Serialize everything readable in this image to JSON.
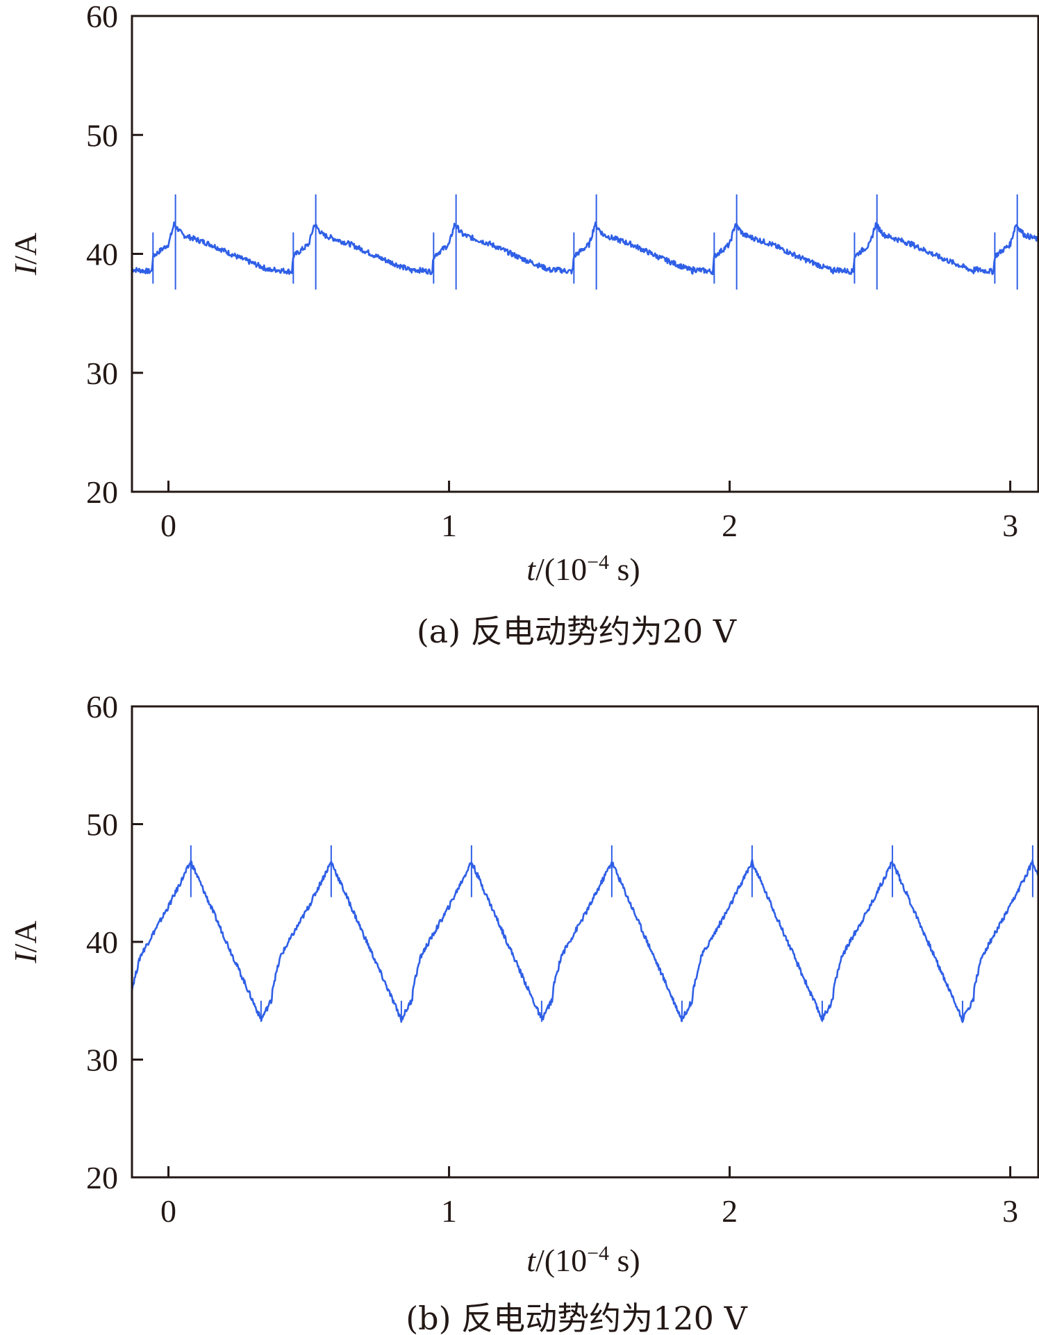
{
  "chart_data": [
    {
      "type": "line",
      "caption": "(a) 反电动势约为20 V",
      "xlabel": {
        "var": "t",
        "unit_prefix": "/(10",
        "exp": "−4",
        "unit_suffix": " s)"
      },
      "ylabel": {
        "var": "I",
        "unit": "/A"
      },
      "xlim": [
        -0.13,
        3.1
      ],
      "ylim": [
        20,
        60
      ],
      "xticks": [
        0,
        1,
        2,
        3
      ],
      "yticks": [
        20,
        30,
        40,
        50,
        60
      ],
      "grid": false,
      "color": "#2f5fe6",
      "waveform": {
        "period": 0.5,
        "x": [
          -0.13,
          -0.06,
          -0.055,
          0.0,
          0.02,
          0.05,
          0.15,
          0.25,
          0.365,
          0.37
        ],
        "y": [
          38.7,
          38.5,
          39.8,
          40.8,
          42.5,
          41.6,
          40.8,
          39.7,
          38.6,
          38.5
        ],
        "spikes": [
          {
            "x": -0.055,
            "min": 37.5,
            "max": 41.8
          },
          {
            "x": 0.025,
            "min": 37.0,
            "max": 45.0
          }
        ]
      }
    },
    {
      "type": "line",
      "caption": "(b) 反电动势约为120 V",
      "xlabel": {
        "var": "t",
        "unit_prefix": "/(10",
        "exp": "−4",
        "unit_suffix": " s)"
      },
      "ylabel": {
        "var": "I",
        "unit": "/A"
      },
      "xlim": [
        -0.13,
        3.1
      ],
      "ylim": [
        20,
        60
      ],
      "xticks": [
        0,
        1,
        2,
        3
      ],
      "yticks": [
        20,
        30,
        40,
        50,
        60
      ],
      "grid": false,
      "color": "#2f5fe6",
      "waveform": {
        "period": 0.5,
        "x": [
          -0.13,
          -0.1,
          0.0,
          0.08,
          0.33,
          0.5
        ],
        "y": [
          36.0,
          38.8,
          43.0,
          46.8,
          33.4,
          41.0
        ],
        "spikes": [
          {
            "x": 0.08,
            "min": 43.8,
            "max": 48.2
          },
          {
            "x": 0.33,
            "min": 33.2,
            "max": 35.0
          }
        ]
      }
    }
  ]
}
